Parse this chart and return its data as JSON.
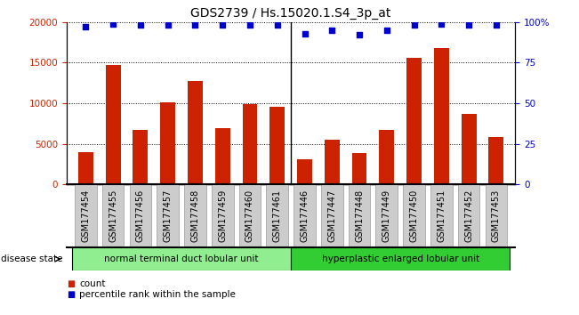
{
  "title": "GDS2739 / Hs.15020.1.S4_3p_at",
  "categories": [
    "GSM177454",
    "GSM177455",
    "GSM177456",
    "GSM177457",
    "GSM177458",
    "GSM177459",
    "GSM177460",
    "GSM177461",
    "GSM177446",
    "GSM177447",
    "GSM177448",
    "GSM177449",
    "GSM177450",
    "GSM177451",
    "GSM177452",
    "GSM177453"
  ],
  "counts": [
    4000,
    14700,
    6700,
    10100,
    12700,
    6900,
    9900,
    9600,
    3100,
    5500,
    3900,
    6700,
    15600,
    16800,
    8700,
    5800
  ],
  "percentiles": [
    97,
    99,
    98,
    98,
    98,
    98,
    98,
    98,
    93,
    95,
    92,
    95,
    98,
    99,
    98,
    98
  ],
  "bar_color": "#cc2200",
  "dot_color": "#0000cc",
  "ylim_left": [
    0,
    20000
  ],
  "ylim_right": [
    0,
    100
  ],
  "yticks_left": [
    0,
    5000,
    10000,
    15000,
    20000
  ],
  "yticks_right": [
    0,
    25,
    50,
    75,
    100
  ],
  "group1_label": "normal terminal duct lobular unit",
  "group2_label": "hyperplastic enlarged lobular unit",
  "group1_count": 8,
  "group2_count": 8,
  "group1_color": "#90ee90",
  "group2_color": "#32cd32",
  "disease_state_label": "disease state",
  "legend_count_label": "count",
  "legend_pct_label": "percentile rank within the sample",
  "title_fontsize": 10,
  "tick_fontsize": 7.5,
  "xtick_fontsize": 7,
  "pct_dot_size": 18
}
